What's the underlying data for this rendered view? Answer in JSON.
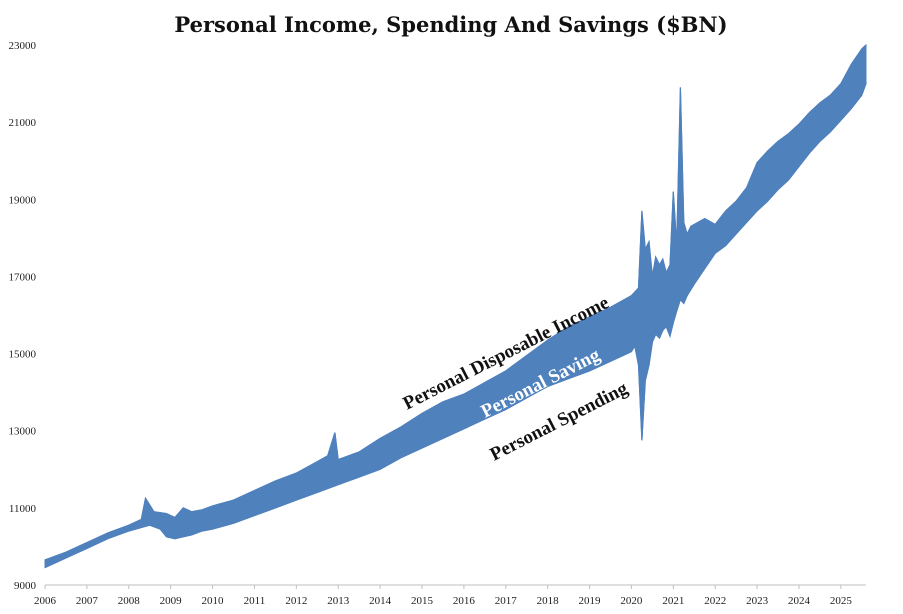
{
  "chart_data": {
    "type": "area",
    "title": "Personal Income, Spending And Savings ($BN)",
    "xlabel": "",
    "ylabel": "",
    "xlim": [
      2006,
      2025.6
    ],
    "ylim": [
      9000,
      23000
    ],
    "x_ticks": [
      "2006",
      "2007",
      "2008",
      "2009",
      "2010",
      "2011",
      "2012",
      "2013",
      "2014",
      "2015",
      "2016",
      "2017",
      "2018",
      "2019",
      "2020",
      "2021",
      "2022",
      "2023",
      "2024",
      "2025"
    ],
    "y_ticks": [
      "9000",
      "11000",
      "13000",
      "15000",
      "17000",
      "19000",
      "21000",
      "23000"
    ],
    "grid": false,
    "legend": "none",
    "band_color": "#4f81bd",
    "series": [
      {
        "name": "Personal Disposable Income",
        "x": [
          2006,
          2006.5,
          2007,
          2007.5,
          2008,
          2008.3,
          2008.4,
          2008.6,
          2008.9,
          2009.1,
          2009.3,
          2009.5,
          2009.75,
          2010,
          2010.5,
          2011,
          2011.5,
          2012,
          2012.5,
          2012.75,
          2012.92,
          2013.0,
          2013.5,
          2014,
          2014.5,
          2015,
          2015.5,
          2016,
          2016.5,
          2017,
          2017.5,
          2018,
          2018.5,
          2019,
          2019.5,
          2020.0,
          2020.17,
          2020.25,
          2020.33,
          2020.42,
          2020.5,
          2020.58,
          2020.67,
          2020.75,
          2020.83,
          2020.92,
          2021.0,
          2021.08,
          2021.17,
          2021.25,
          2021.33,
          2021.42,
          2021.5,
          2021.75,
          2022.0,
          2022.25,
          2022.5,
          2022.75,
          2023.0,
          2023.25,
          2023.5,
          2023.75,
          2024.0,
          2024.25,
          2024.5,
          2024.75,
          2025.0,
          2025.25,
          2025.5,
          2025.6
        ],
        "values": [
          9650,
          9850,
          10100,
          10350,
          10550,
          10700,
          11250,
          10900,
          10850,
          10750,
          11000,
          10900,
          10950,
          11050,
          11200,
          11450,
          11700,
          11900,
          12200,
          12350,
          12950,
          12250,
          12450,
          12800,
          13100,
          13450,
          13750,
          13950,
          14250,
          14550,
          14950,
          15350,
          15700,
          15950,
          16200,
          16500,
          16700,
          18700,
          17700,
          17900,
          17000,
          17500,
          17300,
          17450,
          17100,
          17300,
          19200,
          17800,
          21900,
          18400,
          18100,
          18300,
          18350,
          18500,
          18350,
          18700,
          18950,
          19300,
          19950,
          20250,
          20500,
          20700,
          20950,
          21250,
          21500,
          21700,
          22000,
          22500,
          22900,
          23000
        ]
      },
      {
        "name": "Personal Spending",
        "x": [
          2006,
          2006.5,
          2007,
          2007.5,
          2008,
          2008.5,
          2008.75,
          2008.9,
          2009.1,
          2009.3,
          2009.5,
          2009.75,
          2010,
          2010.5,
          2011,
          2011.5,
          2012,
          2012.5,
          2013,
          2013.5,
          2014,
          2014.5,
          2015,
          2015.5,
          2016,
          2016.5,
          2017,
          2017.5,
          2018,
          2018.5,
          2019,
          2019.5,
          2020.0,
          2020.08,
          2020.17,
          2020.25,
          2020.33,
          2020.42,
          2020.5,
          2020.58,
          2020.67,
          2020.75,
          2020.83,
          2020.92,
          2021.0,
          2021.08,
          2021.17,
          2021.25,
          2021.33,
          2021.5,
          2021.75,
          2022.0,
          2022.25,
          2022.5,
          2022.75,
          2023.0,
          2023.25,
          2023.5,
          2023.75,
          2024.0,
          2024.25,
          2024.5,
          2024.75,
          2025.0,
          2025.25,
          2025.5,
          2025.6
        ],
        "values": [
          9450,
          9700,
          9950,
          10200,
          10400,
          10550,
          10450,
          10250,
          10200,
          10250,
          10300,
          10400,
          10450,
          10600,
          10800,
          11000,
          11200,
          11400,
          11600,
          11800,
          12000,
          12300,
          12550,
          12800,
          13050,
          13300,
          13550,
          13850,
          14150,
          14350,
          14550,
          14800,
          15050,
          15200,
          14700,
          12750,
          14300,
          14700,
          15300,
          15500,
          15400,
          15600,
          15700,
          15450,
          15800,
          16100,
          16400,
          16300,
          16500,
          16800,
          17200,
          17600,
          17800,
          18100,
          18400,
          18700,
          18950,
          19250,
          19500,
          19850,
          20200,
          20500,
          20750,
          21050,
          21350,
          21700,
          22000
        ]
      }
    ],
    "annotations": [
      {
        "text": "Personal Disposable Income",
        "color": "#111111"
      },
      {
        "text": "Personal Saving",
        "color": "#ffffff"
      },
      {
        "text": "Personal Spending",
        "color": "#111111"
      }
    ]
  }
}
